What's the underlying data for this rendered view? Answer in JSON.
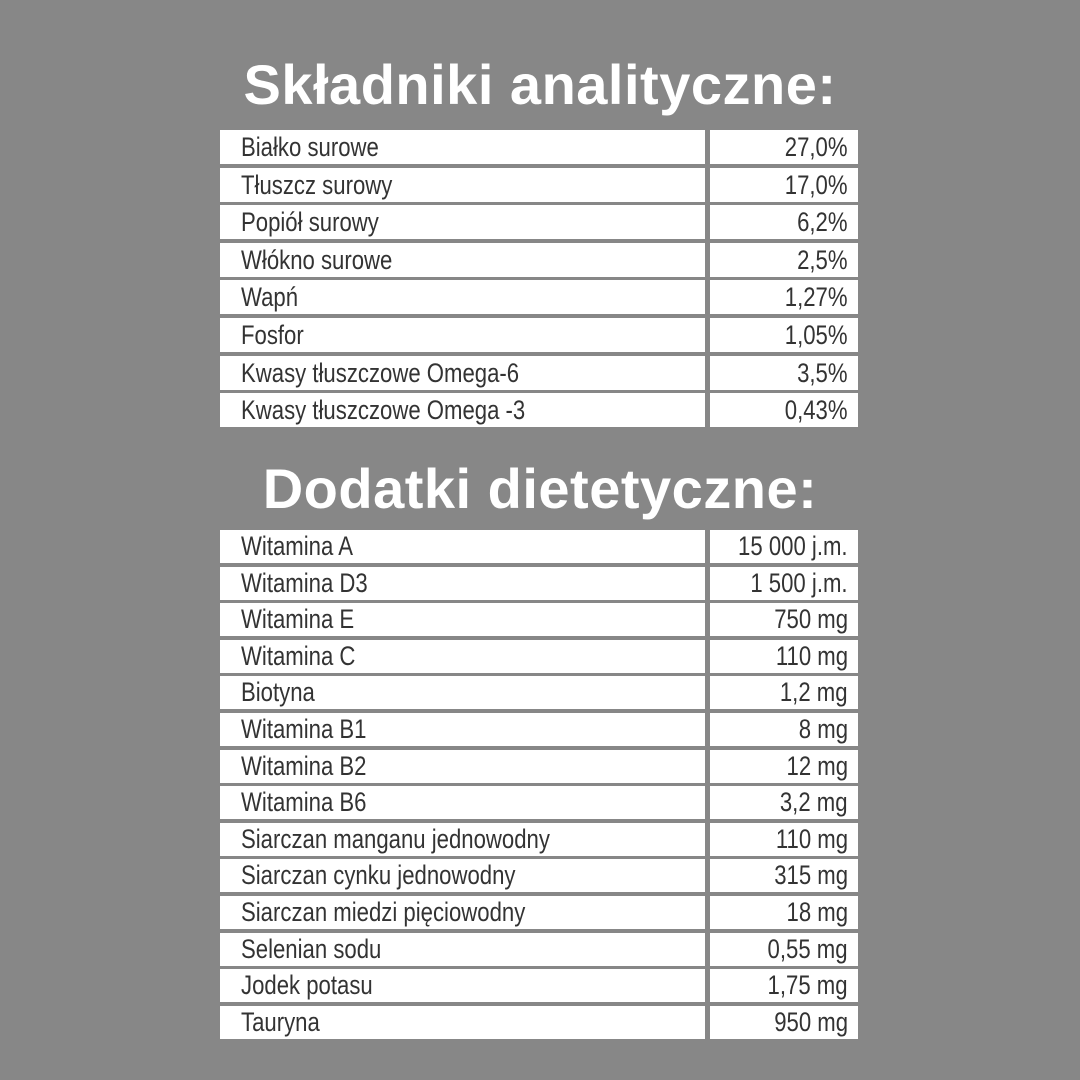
{
  "analytical": {
    "title": "Składniki analityczne:",
    "rows": [
      {
        "name": "Białko surowe",
        "value": "27,0%"
      },
      {
        "name": "Tłuszcz surowy",
        "value": "17,0%"
      },
      {
        "name": "Popiół surowy",
        "value": "6,2%"
      },
      {
        "name": "Włókno surowe",
        "value": "2,5%"
      },
      {
        "name": "Wapń",
        "value": "1,27%"
      },
      {
        "name": "Fosfor",
        "value": "1,05%"
      },
      {
        "name": "Kwasy tłuszczowe Omega-6",
        "value": "3,5%"
      },
      {
        "name": "Kwasy tłuszczowe Omega -3",
        "value": "0,43%"
      }
    ]
  },
  "additives": {
    "title": "Dodatki dietetyczne:",
    "rows": [
      {
        "name": "Witamina A",
        "value": "15 000 j.m."
      },
      {
        "name": "Witamina D3",
        "value": "1 500 j.m."
      },
      {
        "name": "Witamina E",
        "value": "750 mg"
      },
      {
        "name": "Witamina C",
        "value": "110 mg"
      },
      {
        "name": "Biotyna",
        "value": "1,2 mg"
      },
      {
        "name": "Witamina B1",
        "value": "8 mg"
      },
      {
        "name": "Witamina B2",
        "value": "12 mg"
      },
      {
        "name": "Witamina B6",
        "value": "3,2 mg"
      },
      {
        "name": "Siarczan manganu jednowodny",
        "value": "110 mg"
      },
      {
        "name": "Siarczan cynku jednowodny",
        "value": "315 mg"
      },
      {
        "name": "Siarczan miedzi pięciowodny",
        "value": "18 mg"
      },
      {
        "name": "Selenian sodu",
        "value": "0,55 mg"
      },
      {
        "name": "Jodek potasu",
        "value": "1,75 mg"
      },
      {
        "name": "Tauryna",
        "value": "950 mg"
      }
    ]
  },
  "colors": {
    "background": "#878787",
    "cell": "#ffffff",
    "text": "#333333",
    "title": "#ffffff"
  }
}
